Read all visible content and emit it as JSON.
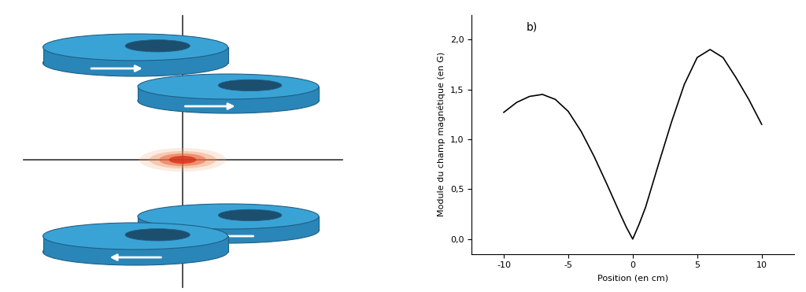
{
  "chart_data": {
    "type": "line",
    "annotation": "b)",
    "x_label": "Position (en cm)",
    "y_label": "Module du champ magnétique (en G)",
    "x": [
      -10,
      -9,
      -8,
      -7,
      -6,
      -5,
      -4,
      -3,
      -2,
      -1,
      -0.5,
      0,
      0.5,
      1,
      2,
      3,
      4,
      5,
      6,
      7,
      8,
      9,
      10
    ],
    "values": [
      1.27,
      1.37,
      1.43,
      1.45,
      1.4,
      1.28,
      1.08,
      0.83,
      0.55,
      0.26,
      0.12,
      0.0,
      0.15,
      0.32,
      0.75,
      1.17,
      1.55,
      1.82,
      1.9,
      1.82,
      1.62,
      1.4,
      1.15
    ],
    "color": "#000000",
    "xlim": [
      -12.5,
      12.5
    ],
    "ylim": [
      -0.15,
      2.25
    ],
    "xticks": [
      -10,
      -5,
      0,
      5,
      10
    ],
    "yticks": [
      {
        "value": 0.0,
        "label": "0,0"
      },
      {
        "value": 0.5,
        "label": "0,5"
      },
      {
        "value": 1.0,
        "label": "1,0"
      },
      {
        "value": 1.5,
        "label": "1,5"
      },
      {
        "value": 2.0,
        "label": "2,0"
      }
    ]
  }
}
